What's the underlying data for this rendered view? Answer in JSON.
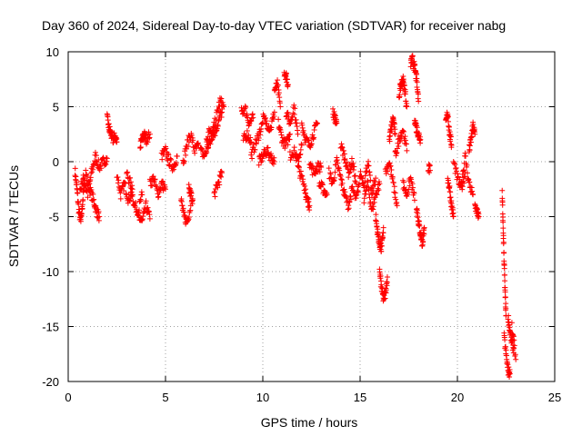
{
  "chart_data": {
    "type": "scatter",
    "title": "Day 360 of 2024, Sidereal Day-to-day VTEC variation (SDTVAR) for receiver nabg",
    "xlabel": "GPS time / hours",
    "ylabel": "SDTVAR / TECUs",
    "xlim": [
      0,
      25
    ],
    "ylim": [
      -20,
      10
    ],
    "xticks": [
      0,
      5,
      10,
      15,
      20,
      25
    ],
    "yticks": [
      -20,
      -15,
      -10,
      -5,
      0,
      5,
      10
    ],
    "xtick_labels": [
      "0",
      "5",
      "10",
      "15",
      "20",
      "25"
    ],
    "ytick_labels": [
      "-20",
      "-15",
      "-10",
      "-5",
      "0",
      "5",
      "10"
    ],
    "grid": true,
    "marker": "+",
    "series": [
      {
        "name": "SDTVAR",
        "color": "#ff0000",
        "arcs": [
          {
            "x": [
              0.35,
              0.45,
              0.55,
              0.65,
              0.75,
              0.85
            ],
            "y": [
              -0.8,
              -2.5,
              -4.5,
              -5.5,
              -3.5,
              -1.5
            ]
          },
          {
            "x": [
              0.6,
              0.8,
              1.0,
              1.2,
              1.4,
              1.6,
              1.8,
              2.0
            ],
            "y": [
              -2.5,
              -1.5,
              -3.0,
              -1.0,
              0.5,
              -0.5,
              0.0,
              0.3
            ]
          },
          {
            "x": [
              0.9,
              1.1,
              1.3,
              1.45,
              1.6
            ],
            "y": [
              -1.0,
              -2.5,
              -3.5,
              -4.5,
              -5.0
            ]
          },
          {
            "x": [
              2.0,
              2.1,
              2.2,
              2.3,
              2.4,
              2.5
            ],
            "y": [
              4.0,
              3.0,
              2.5,
              2.0,
              2.3,
              1.8
            ]
          },
          {
            "x": [
              2.5,
              2.7,
              2.9,
              3.1,
              3.3
            ],
            "y": [
              -1.0,
              -3.0,
              -2.0,
              -3.5,
              -2.5
            ]
          },
          {
            "x": [
              3.0,
              3.2,
              3.4,
              3.6,
              3.8
            ],
            "y": [
              -1.0,
              -2.0,
              -4.0,
              -4.5,
              -3.0
            ]
          },
          {
            "x": [
              3.6,
              3.8,
              4.0,
              4.2
            ],
            "y": [
              -5.0,
              -5.5,
              -4.0,
              -5.2
            ]
          },
          {
            "x": [
              3.7,
              3.8,
              3.9,
              4.0,
              4.2
            ],
            "y": [
              1.5,
              2.0,
              2.5,
              2.0,
              2.5
            ]
          },
          {
            "x": [
              4.2,
              4.4,
              4.6,
              4.8,
              5.0
            ],
            "y": [
              -2.0,
              -1.5,
              -3.0,
              -2.0,
              -2.5
            ]
          },
          {
            "x": [
              4.8,
              5.0,
              5.2,
              5.4,
              5.6
            ],
            "y": [
              0.5,
              1.0,
              0.0,
              -0.5,
              0.5
            ]
          },
          {
            "x": [
              5.8,
              5.95,
              6.1,
              6.3
            ],
            "y": [
              -3.5,
              -5.0,
              -5.5,
              -4.0
            ]
          },
          {
            "x": [
              5.9,
              6.1,
              6.3,
              6.5,
              6.7
            ],
            "y": [
              0.0,
              1.5,
              2.5,
              1.0,
              1.5
            ]
          },
          {
            "x": [
              6.2,
              6.3,
              6.4
            ],
            "y": [
              -2.5,
              -3.0,
              -3.5
            ]
          },
          {
            "x": [
              6.8,
              7.0,
              7.2,
              7.4
            ],
            "y": [
              1.0,
              0.5,
              1.5,
              2.0
            ]
          },
          {
            "x": [
              7.1,
              7.3,
              7.5,
              7.7,
              7.9
            ],
            "y": [
              2.0,
              3.0,
              2.5,
              3.5,
              4.5
            ]
          },
          {
            "x": [
              7.4,
              7.6,
              7.8,
              8.0
            ],
            "y": [
              2.5,
              4.0,
              5.5,
              5.0
            ]
          },
          {
            "x": [
              7.5,
              7.7,
              7.9
            ],
            "y": [
              -3.0,
              -2.0,
              -1.0
            ]
          },
          {
            "x": [
              8.9,
              9.1,
              9.3,
              9.5
            ],
            "y": [
              4.5,
              4.8,
              3.5,
              4.0
            ]
          },
          {
            "x": [
              9.0,
              9.2,
              9.4
            ],
            "y": [
              2.0,
              2.5,
              1.8
            ]
          },
          {
            "x": [
              9.4,
              9.6,
              9.8,
              10.0
            ],
            "y": [
              0.5,
              1.5,
              2.5,
              3.5
            ]
          },
          {
            "x": [
              9.8,
              10.0,
              10.2,
              10.4,
              10.6
            ],
            "y": [
              0.0,
              0.5,
              1.0,
              0.5,
              0.0
            ]
          },
          {
            "x": [
              10.0,
              10.2,
              10.4,
              10.6
            ],
            "y": [
              4.0,
              3.5,
              3.0,
              4.5
            ]
          },
          {
            "x": [
              10.6,
              10.75,
              10.9
            ],
            "y": [
              6.5,
              7.0,
              5.0
            ]
          },
          {
            "x": [
              10.8,
              11.0,
              11.2,
              11.4
            ],
            "y": [
              3.5,
              2.0,
              1.5,
              2.5
            ]
          },
          {
            "x": [
              11.1,
              11.2,
              11.3
            ],
            "y": [
              8.2,
              7.8,
              7.0
            ]
          },
          {
            "x": [
              11.2,
              11.4,
              11.6,
              11.8
            ],
            "y": [
              4.5,
              3.5,
              5.0,
              2.5
            ]
          },
          {
            "x": [
              11.4,
              11.6,
              11.8,
              12.0
            ],
            "y": [
              0.5,
              1.0,
              0.0,
              1.5
            ]
          },
          {
            "x": [
              11.8,
              12.0,
              12.2
            ],
            "y": [
              -0.5,
              -1.5,
              -2.5
            ]
          },
          {
            "x": [
              12.0,
              12.2,
              12.4,
              12.6,
              12.8
            ],
            "y": [
              3.5,
              2.0,
              1.5,
              2.5,
              3.5
            ]
          },
          {
            "x": [
              12.2,
              12.3,
              12.4
            ],
            "y": [
              -3.0,
              -3.5,
              -4.0
            ]
          },
          {
            "x": [
              12.4,
              12.6,
              12.8,
              13.0
            ],
            "y": [
              0.0,
              -1.0,
              -0.5,
              -0.5
            ]
          },
          {
            "x": [
              12.9,
              13.1,
              13.3
            ],
            "y": [
              -2.0,
              -2.5,
              -3.0
            ]
          },
          {
            "x": [
              13.6,
              13.7,
              13.8
            ],
            "y": [
              4.5,
              4.0,
              3.5
            ]
          },
          {
            "x": [
              13.4,
              13.6,
              13.8,
              14.0,
              14.2
            ],
            "y": [
              -1.0,
              -2.0,
              0.0,
              -1.5,
              -3.0
            ]
          },
          {
            "x": [
              14.0,
              14.2,
              14.4,
              14.6,
              14.8
            ],
            "y": [
              1.5,
              0.5,
              -1.0,
              0.0,
              -2.0
            ]
          },
          {
            "x": [
              14.2,
              14.4,
              14.6,
              14.8,
              15.0
            ],
            "y": [
              -3.0,
              -4.0,
              -2.5,
              -3.5,
              -1.5
            ]
          },
          {
            "x": [
              15.0,
              15.2,
              15.4,
              15.6,
              15.8
            ],
            "y": [
              -1.0,
              -2.0,
              0.0,
              -3.0,
              -1.5
            ]
          },
          {
            "x": [
              15.2,
              15.4,
              15.6,
              15.8,
              16.0
            ],
            "y": [
              -3.5,
              -2.0,
              -4.5,
              -3.0,
              -2.0
            ]
          },
          {
            "x": [
              15.8,
              15.9,
              16.0,
              16.1,
              16.2
            ],
            "y": [
              -5.0,
              -6.5,
              -7.5,
              -8.0,
              -6.0
            ]
          },
          {
            "x": [
              16.0,
              16.1,
              16.2,
              16.3,
              16.4
            ],
            "y": [
              -10.0,
              -11.5,
              -12.5,
              -12.0,
              -10.5
            ]
          },
          {
            "x": [
              16.3,
              16.5,
              16.7,
              16.9
            ],
            "y": [
              -1.0,
              0.0,
              -2.0,
              -4.0
            ]
          },
          {
            "x": [
              16.5,
              16.6,
              16.7,
              16.8
            ],
            "y": [
              2.0,
              3.0,
              4.0,
              2.5
            ]
          },
          {
            "x": [
              16.8,
              17.0,
              17.2,
              17.4
            ],
            "y": [
              0.5,
              2.0,
              3.0,
              1.0
            ]
          },
          {
            "x": [
              17.0,
              17.1,
              17.2,
              17.3,
              17.4
            ],
            "y": [
              6.0,
              7.0,
              7.5,
              6.5,
              5.0
            ]
          },
          {
            "x": [
              17.2,
              17.4,
              17.6,
              17.8
            ],
            "y": [
              -2.0,
              -3.0,
              -1.5,
              -3.5
            ]
          },
          {
            "x": [
              17.6,
              17.7,
              17.8,
              17.9,
              18.0
            ],
            "y": [
              9.0,
              9.3,
              8.5,
              7.5,
              5.5
            ]
          },
          {
            "x": [
              17.8,
              17.9,
              18.0,
              18.1
            ],
            "y": [
              4.0,
              3.0,
              2.5,
              2.0
            ]
          },
          {
            "x": [
              17.9,
              18.0,
              18.1,
              18.2,
              18.3
            ],
            "y": [
              -4.0,
              -5.5,
              -6.5,
              -7.5,
              -6.0
            ]
          },
          {
            "x": [
              18.5,
              18.6
            ],
            "y": [
              -0.5,
              -0.8
            ]
          },
          {
            "x": [
              19.4,
              19.5,
              19.6,
              19.7
            ],
            "y": [
              3.5,
              4.5,
              2.5,
              1.5
            ]
          },
          {
            "x": [
              19.5,
              19.6,
              19.7,
              19.8
            ],
            "y": [
              -1.5,
              -2.5,
              -4.0,
              -5.0
            ]
          },
          {
            "x": [
              19.8,
              20.0,
              20.2,
              20.4
            ],
            "y": [
              0.0,
              -1.5,
              -2.5,
              -1.0
            ]
          },
          {
            "x": [
              20.2,
              20.4,
              20.6,
              20.8
            ],
            "y": [
              -2.0,
              0.5,
              -2.0,
              -3.0
            ]
          },
          {
            "x": [
              20.6,
              20.7,
              20.8,
              20.9
            ],
            "y": [
              1.0,
              2.0,
              3.2,
              2.5
            ]
          },
          {
            "x": [
              20.9,
              21.0,
              21.1
            ],
            "y": [
              -4.0,
              -4.5,
              -5.0
            ]
          },
          {
            "x": [
              22.3,
              22.35,
              22.4,
              22.45,
              22.5
            ],
            "y": [
              -3.0,
              -6.0,
              -9.0,
              -12.0,
              -14.0
            ]
          },
          {
            "x": [
              22.4,
              22.5,
              22.6,
              22.7
            ],
            "y": [
              -16.0,
              -17.5,
              -19.0,
              -19.3
            ]
          },
          {
            "x": [
              22.6,
              22.7,
              22.8,
              22.9
            ],
            "y": [
              -14.0,
              -15.5,
              -16.5,
              -17.0
            ]
          },
          {
            "x": [
              22.8,
              23.0
            ],
            "y": [
              -15.0,
              -18.0
            ]
          }
        ]
      }
    ]
  }
}
